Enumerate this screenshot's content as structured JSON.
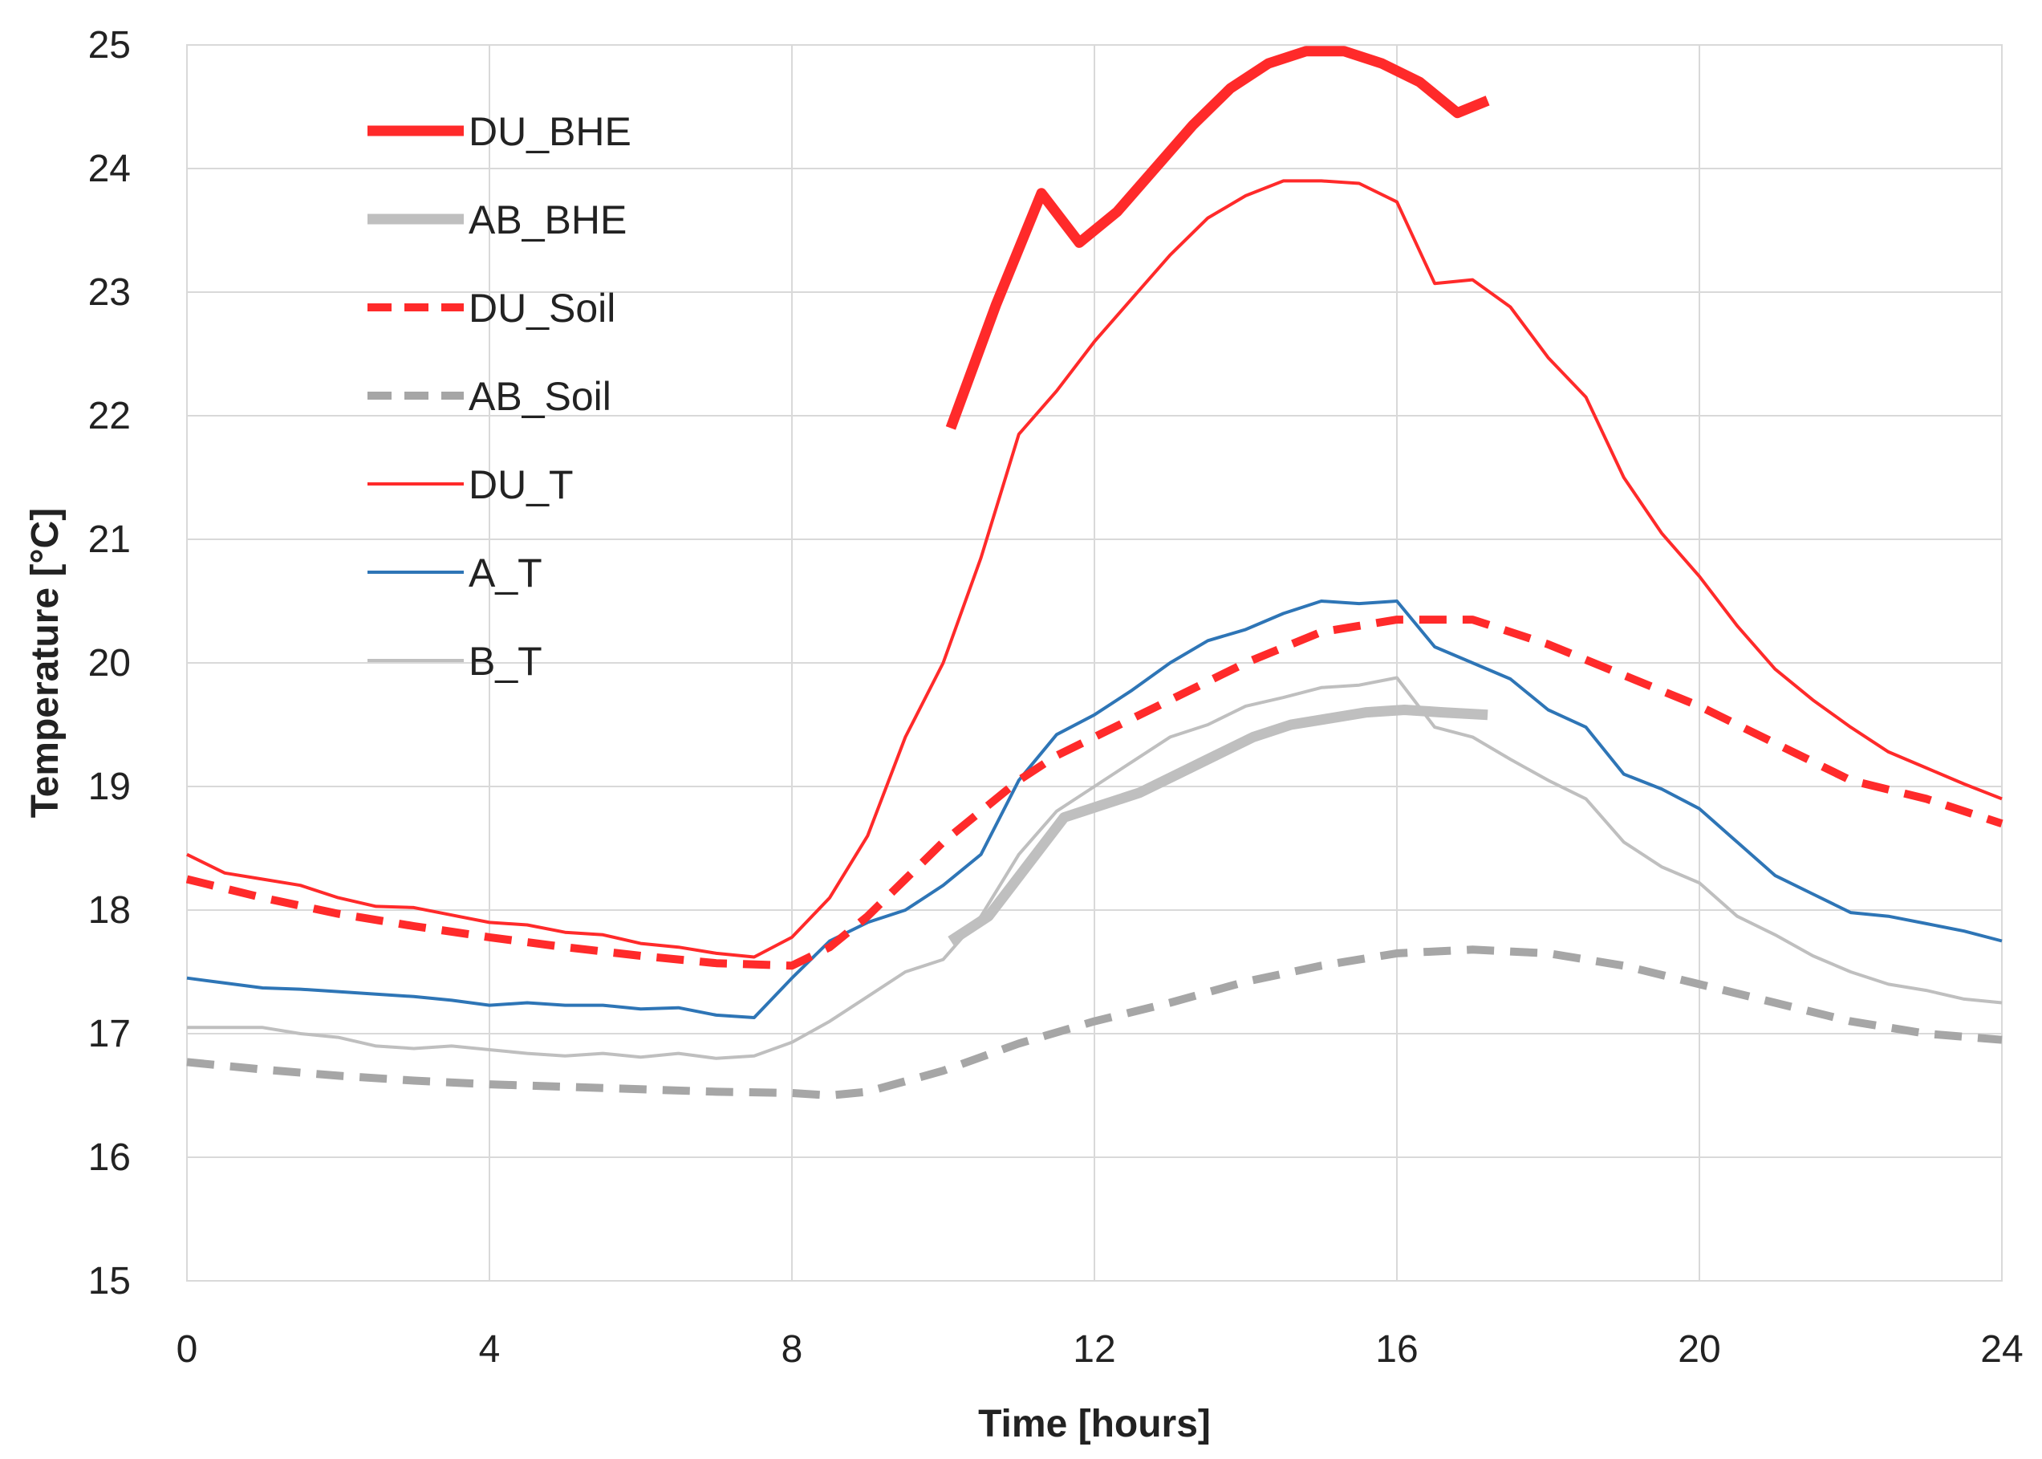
{
  "chart_data": {
    "type": "line",
    "title": "",
    "xlabel": "Time [hours]",
    "ylabel": "Temperature [°C]",
    "xlim": [
      0,
      24
    ],
    "ylim": [
      15,
      25
    ],
    "xticks": [
      "0",
      "4",
      "8",
      "12",
      "16",
      "20",
      "24"
    ],
    "yticks": [
      "15",
      "16",
      "17",
      "18",
      "19",
      "20",
      "21",
      "22",
      "23",
      "24",
      "25"
    ],
    "grid": true,
    "legend_position": "top-left",
    "series": [
      {
        "name": "DU_BHE",
        "color": "#ff2a2a",
        "style": "solid-thick",
        "x": [
          10.1,
          10.7,
          11.3,
          11.8,
          12.3,
          12.8,
          13.3,
          13.8,
          14.3,
          14.8,
          15.3,
          15.8,
          16.3,
          16.8,
          17.2
        ],
        "y": [
          21.9,
          22.9,
          23.8,
          23.4,
          23.65,
          24.0,
          24.35,
          24.65,
          24.85,
          24.95,
          24.95,
          24.85,
          24.7,
          24.45,
          24.55
        ]
      },
      {
        "name": "AB_BHE",
        "color": "#bfbfbf",
        "style": "solid-thick",
        "x": [
          10.1,
          10.6,
          11.1,
          11.6,
          12.1,
          12.6,
          13.1,
          13.6,
          14.1,
          14.6,
          15.1,
          15.6,
          16.1,
          16.6,
          17.2
        ],
        "y": [
          17.75,
          17.95,
          18.35,
          18.75,
          18.85,
          18.95,
          19.1,
          19.25,
          19.4,
          19.5,
          19.55,
          19.6,
          19.62,
          19.6,
          19.58
        ]
      },
      {
        "name": "DU_Soil",
        "color": "#ff2a2a",
        "style": "dashed-thick",
        "x": [
          0,
          1,
          2,
          3,
          4,
          5,
          6,
          7,
          8,
          8.5,
          9,
          9.5,
          10,
          10.5,
          11,
          11.5,
          12,
          13,
          14,
          15,
          16,
          17,
          18,
          19,
          20,
          21,
          22,
          23,
          24
        ],
        "y": [
          18.25,
          18.1,
          17.97,
          17.87,
          17.78,
          17.7,
          17.63,
          17.57,
          17.55,
          17.7,
          17.95,
          18.25,
          18.55,
          18.8,
          19.05,
          19.25,
          19.4,
          19.7,
          20.0,
          20.25,
          20.35,
          20.35,
          20.15,
          19.9,
          19.65,
          19.35,
          19.05,
          18.9,
          18.7
        ]
      },
      {
        "name": "AB_Soil",
        "color": "#a6a6a6",
        "style": "dashed-thick",
        "x": [
          0,
          1,
          2,
          3,
          4,
          5,
          6,
          7,
          8,
          8.5,
          9,
          10,
          11,
          12,
          13,
          14,
          15,
          16,
          17,
          18,
          19,
          20,
          21,
          22,
          23,
          24
        ],
        "y": [
          16.77,
          16.71,
          16.66,
          16.62,
          16.59,
          16.57,
          16.55,
          16.53,
          16.52,
          16.5,
          16.53,
          16.7,
          16.92,
          17.1,
          17.25,
          17.42,
          17.55,
          17.65,
          17.68,
          17.65,
          17.55,
          17.4,
          17.25,
          17.1,
          17.0,
          16.95
        ]
      },
      {
        "name": "DU_T",
        "color": "#ff2a2a",
        "style": "solid-thin",
        "x": [
          0,
          0.5,
          1,
          1.5,
          2,
          2.5,
          3,
          3.5,
          4,
          4.5,
          5,
          5.5,
          6,
          6.5,
          7,
          7.5,
          8,
          8.5,
          9,
          9.5,
          10,
          10.5,
          11,
          11.5,
          12,
          12.5,
          13,
          13.5,
          14,
          14.5,
          15,
          15.5,
          16,
          16.5,
          17,
          17.5,
          18,
          18.5,
          19,
          19.5,
          20,
          20.5,
          21,
          21.5,
          22,
          22.5,
          23,
          23.5,
          24
        ],
        "y": [
          18.45,
          18.3,
          18.25,
          18.2,
          18.1,
          18.03,
          18.02,
          17.96,
          17.9,
          17.88,
          17.82,
          17.8,
          17.73,
          17.7,
          17.65,
          17.62,
          17.78,
          18.1,
          18.6,
          19.4,
          20.0,
          20.85,
          21.85,
          22.2,
          22.6,
          22.95,
          23.3,
          23.6,
          23.78,
          23.9,
          23.9,
          23.88,
          23.73,
          23.07,
          23.1,
          22.88,
          22.47,
          22.15,
          21.5,
          21.05,
          20.7,
          20.3,
          19.95,
          19.7,
          19.48,
          19.28,
          19.15,
          19.02,
          18.9
        ]
      },
      {
        "name": "A_T",
        "color": "#2e75b6",
        "style": "solid-thin",
        "x": [
          0,
          0.5,
          1,
          1.5,
          2,
          2.5,
          3,
          3.5,
          4,
          4.5,
          5,
          5.5,
          6,
          6.5,
          7,
          7.5,
          8,
          8.5,
          9,
          9.5,
          10,
          10.5,
          11,
          11.5,
          12,
          12.5,
          13,
          13.5,
          14,
          14.5,
          15,
          15.5,
          16,
          16.5,
          17,
          17.5,
          18,
          18.5,
          19,
          19.5,
          20,
          20.5,
          21,
          21.5,
          22,
          22.5,
          23,
          23.5,
          24
        ],
        "y": [
          17.45,
          17.41,
          17.37,
          17.36,
          17.34,
          17.32,
          17.3,
          17.27,
          17.23,
          17.25,
          17.23,
          17.23,
          17.2,
          17.21,
          17.15,
          17.13,
          17.45,
          17.75,
          17.9,
          18.0,
          18.2,
          18.45,
          19.05,
          19.42,
          19.58,
          19.78,
          20.0,
          20.18,
          20.27,
          20.4,
          20.5,
          20.48,
          20.5,
          20.13,
          20.0,
          19.87,
          19.62,
          19.48,
          19.1,
          18.98,
          18.82,
          18.55,
          18.28,
          18.13,
          17.98,
          17.95,
          17.89,
          17.83,
          17.75
        ]
      },
      {
        "name": "B_T",
        "color": "#bfbfbf",
        "style": "solid-thin",
        "x": [
          0,
          0.5,
          1,
          1.5,
          2,
          2.5,
          3,
          3.5,
          4,
          4.5,
          5,
          5.5,
          6,
          6.5,
          7,
          7.5,
          8,
          8.5,
          9,
          9.5,
          10,
          10.5,
          11,
          11.5,
          12,
          12.5,
          13,
          13.5,
          14,
          14.5,
          15,
          15.5,
          16,
          16.5,
          17,
          17.5,
          18,
          18.5,
          19,
          19.5,
          20,
          20.5,
          21,
          21.5,
          22,
          22.5,
          23,
          23.5,
          24
        ],
        "y": [
          17.05,
          17.05,
          17.05,
          17.0,
          16.97,
          16.9,
          16.88,
          16.9,
          16.87,
          16.84,
          16.82,
          16.84,
          16.81,
          16.84,
          16.8,
          16.82,
          16.93,
          17.1,
          17.3,
          17.5,
          17.6,
          17.95,
          18.45,
          18.8,
          19.0,
          19.2,
          19.4,
          19.5,
          19.65,
          19.72,
          19.8,
          19.82,
          19.88,
          19.48,
          19.4,
          19.22,
          19.05,
          18.9,
          18.55,
          18.35,
          18.22,
          17.95,
          17.8,
          17.63,
          17.5,
          17.4,
          17.35,
          17.28,
          17.25
        ]
      }
    ]
  }
}
